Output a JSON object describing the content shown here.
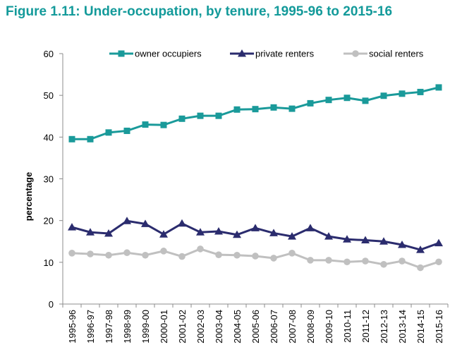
{
  "figure": {
    "title": "Figure 1.11: Under-occupation, by tenure, 1995-96 to 2015-16"
  },
  "chart_data": {
    "type": "line",
    "title": "Figure 1.11: Under-occupation, by tenure, 1995-96 to 2015-16",
    "xlabel": "",
    "ylabel": "percentage",
    "ylim": [
      0,
      60
    ],
    "yticks": [
      0,
      10,
      20,
      30,
      40,
      50,
      60
    ],
    "grid": false,
    "legend_position": "top",
    "categories": [
      "1995-96",
      "1996-97",
      "1997-98",
      "1998-99",
      "1999-00",
      "2000-01",
      "2001-02",
      "2002-03",
      "2003-04",
      "2004-05",
      "2005-06",
      "2006-07",
      "2007-08",
      "2008-09",
      "2009-10",
      "2010-11",
      "2011-12",
      "2012-13",
      "2013-14",
      "2014-15",
      "2015-16"
    ],
    "series": [
      {
        "name": "owner occupiers",
        "color": "#1a9a9a",
        "marker": "square",
        "values": [
          39.5,
          39.5,
          41.1,
          41.5,
          43.0,
          42.9,
          44.4,
          45.1,
          45.1,
          46.6,
          46.7,
          47.1,
          46.8,
          48.1,
          48.9,
          49.4,
          48.7,
          49.9,
          50.4,
          50.8,
          51.9
        ]
      },
      {
        "name": "private renters",
        "color": "#2b2c6e",
        "marker": "triangle",
        "values": [
          18.4,
          17.2,
          16.9,
          19.9,
          19.2,
          16.7,
          19.3,
          17.2,
          17.4,
          16.6,
          18.2,
          17.0,
          16.2,
          18.2,
          16.2,
          15.5,
          15.3,
          15.0,
          14.2,
          13.0,
          14.6
        ]
      },
      {
        "name": "social renters",
        "color": "#c0c0c0",
        "marker": "circle",
        "values": [
          12.2,
          12.0,
          11.7,
          12.3,
          11.7,
          12.7,
          11.4,
          13.2,
          11.8,
          11.7,
          11.5,
          11.0,
          12.2,
          10.5,
          10.5,
          10.1,
          10.3,
          9.5,
          10.3,
          8.7,
          10.1
        ]
      }
    ]
  }
}
